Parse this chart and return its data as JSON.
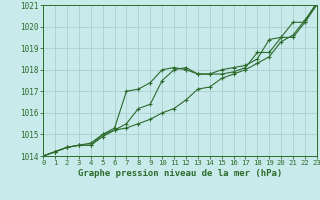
{
  "title": "Graphe pression niveau de la mer (hPa)",
  "bg_color": "#c8eaea",
  "grid_color": "#a8c8c8",
  "line_color": "#2d6b2d",
  "xlim": [
    0,
    23
  ],
  "ylim": [
    1014,
    1021
  ],
  "yticks": [
    1014,
    1015,
    1016,
    1017,
    1018,
    1019,
    1020,
    1021
  ],
  "xticks": [
    0,
    1,
    2,
    3,
    4,
    5,
    6,
    7,
    8,
    9,
    10,
    11,
    12,
    13,
    14,
    15,
    16,
    17,
    18,
    19,
    20,
    21,
    22,
    23
  ],
  "series": [
    [
      1014.0,
      1014.2,
      1014.4,
      1014.5,
      1014.6,
      1015.0,
      1015.3,
      1017.0,
      1017.1,
      1017.4,
      1018.0,
      1018.1,
      1018.0,
      1017.8,
      1017.8,
      1018.0,
      1018.1,
      1018.2,
      1018.5,
      1019.4,
      1019.5,
      1020.2,
      1020.2,
      1021.1
    ],
    [
      1014.0,
      1014.2,
      1014.4,
      1014.5,
      1014.5,
      1015.0,
      1015.2,
      1015.5,
      1016.2,
      1016.4,
      1017.5,
      1018.0,
      1018.1,
      1017.8,
      1017.8,
      1017.8,
      1017.9,
      1018.1,
      1018.8,
      1018.8,
      1019.5,
      1019.5,
      1020.2,
      1021.0
    ],
    [
      1014.0,
      1014.2,
      1014.4,
      1014.5,
      1014.5,
      1014.9,
      1015.2,
      1015.3,
      1015.5,
      1015.7,
      1016.0,
      1016.2,
      1016.6,
      1017.1,
      1017.2,
      1017.6,
      1017.8,
      1018.0,
      1018.3,
      1018.6,
      1019.3,
      1019.6,
      1020.3,
      1021.1
    ]
  ]
}
